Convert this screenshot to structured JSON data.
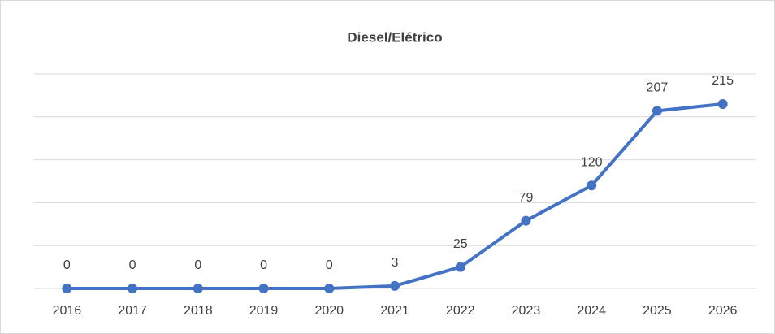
{
  "chart_data": {
    "type": "line",
    "title": "Diesel/Elétrico",
    "categories": [
      "2016",
      "2017",
      "2018",
      "2019",
      "2020",
      "2021",
      "2022",
      "2023",
      "2024",
      "2025",
      "2026"
    ],
    "series": [
      {
        "name": "Diesel/Elétrico",
        "color": "#4472c4",
        "values": [
          0,
          0,
          0,
          0,
          0,
          3,
          25,
          79,
          120,
          207,
          215
        ]
      }
    ],
    "ylim": [
      0,
      250
    ],
    "yticks": [
      0,
      50,
      100,
      150,
      200,
      250
    ],
    "grid": true,
    "legend": false
  }
}
